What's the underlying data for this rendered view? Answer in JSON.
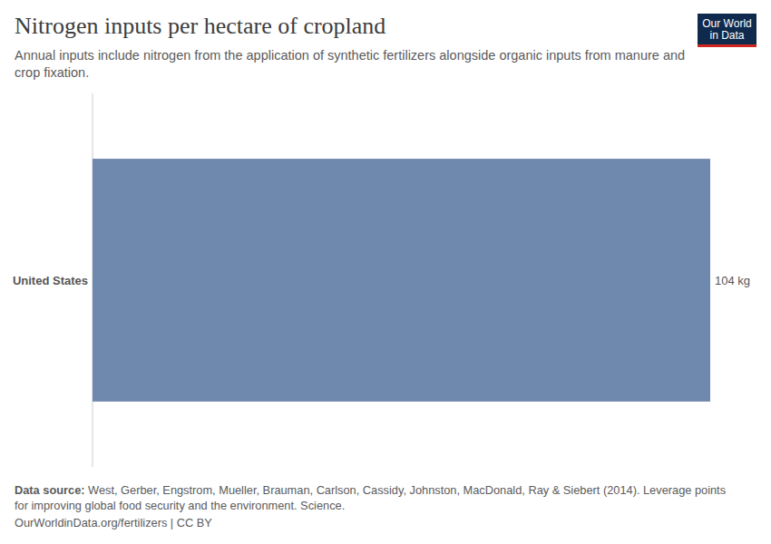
{
  "chart_data": {
    "type": "bar",
    "title": "Nitrogen inputs per hectare of cropland",
    "subtitle": "Annual inputs include nitrogen from the application of synthetic fertilizers alongside organic inputs from manure and crop fixation.",
    "categories": [
      "United States"
    ],
    "values": [
      104
    ],
    "value_labels": [
      "104 kg"
    ],
    "color": "#6f88ad",
    "orientation": "horizontal",
    "data_labels": true,
    "tick_labels": "y",
    "xlim": [
      0,
      104
    ],
    "source_label": "Data source:",
    "source": "West, Gerber, Engstrom, Mueller, Brauman, Carlson, Cassidy, Johnston, MacDonald, Ray & Siebert (2014). Leverage points for improving global food security and the environment. Science.",
    "footer": "OurWorldinData.org/fertilizers | CC BY",
    "logo": [
      "Our World",
      "in Data"
    ]
  }
}
